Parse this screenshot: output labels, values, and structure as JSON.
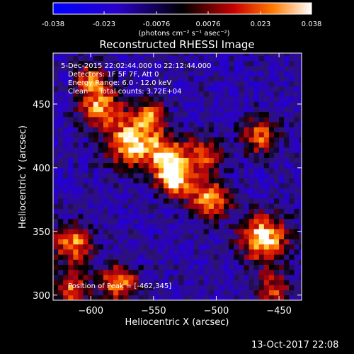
{
  "chart_data": {
    "type": "heatmap",
    "title": "Reconstructed RHESSI Image",
    "xlabel": "Heliocentric X (arcsec)",
    "ylabel": "Heliocentric Y (arcsec)",
    "xlim": [
      -630,
      -432
    ],
    "ylim": [
      296,
      490
    ],
    "x_ticks": [
      -600,
      -550,
      -500,
      -450
    ],
    "y_ticks": [
      300,
      350,
      400,
      450
    ],
    "colorbar": {
      "range": [
        -0.038,
        0.038
      ],
      "ticks": [
        -0.038,
        -0.023,
        -0.0076,
        0.0076,
        0.023,
        0.038
      ],
      "tick_labels": [
        "-0.038",
        "-0.023",
        "-0.0076",
        "0.0076",
        "0.023",
        "0.038"
      ],
      "unit_label": "(photons cm⁻² s⁻¹ asec⁻²)"
    },
    "info_lines": [
      "5-Dec-2015 22:02:44.000 to 22:12:44.000",
      "Detectors: 1F 5F 7F, Att 0",
      "Energy Range: 6.0 - 12.0 keV",
      "Clean     Total counts: 3.72E+04"
    ],
    "peak_label": "Position of Peak = [-462,345]",
    "peak": {
      "x": -462,
      "y": 345
    },
    "sources": [
      {
        "x": -592,
        "y": 448,
        "amplitude": 0.028,
        "sigma": 12
      },
      {
        "x": -568,
        "y": 420,
        "amplitude": 0.036,
        "sigma": 13
      },
      {
        "x": -540,
        "y": 410,
        "amplitude": 0.03,
        "sigma": 11
      },
      {
        "x": -533,
        "y": 392,
        "amplitude": 0.036,
        "sigma": 10
      },
      {
        "x": -552,
        "y": 440,
        "amplitude": 0.022,
        "sigma": 9
      },
      {
        "x": -505,
        "y": 375,
        "amplitude": 0.03,
        "sigma": 11
      },
      {
        "x": -510,
        "y": 410,
        "amplitude": 0.02,
        "sigma": 10
      },
      {
        "x": -462,
        "y": 345,
        "amplitude": 0.038,
        "sigma": 13
      },
      {
        "x": -465,
        "y": 425,
        "amplitude": 0.022,
        "sigma": 10
      },
      {
        "x": -615,
        "y": 340,
        "amplitude": 0.028,
        "sigma": 11
      },
      {
        "x": -578,
        "y": 310,
        "amplitude": 0.032,
        "sigma": 10
      },
      {
        "x": -615,
        "y": 305,
        "amplitude": 0.022,
        "sigma": 9
      },
      {
        "x": -600,
        "y": 470,
        "amplitude": 0.02,
        "sigma": 8
      },
      {
        "x": -455,
        "y": 305,
        "amplitude": 0.018,
        "sigma": 9
      }
    ],
    "background_level": -0.014
  },
  "footer": {
    "timestamp": "13-Oct-2017 22:08"
  }
}
